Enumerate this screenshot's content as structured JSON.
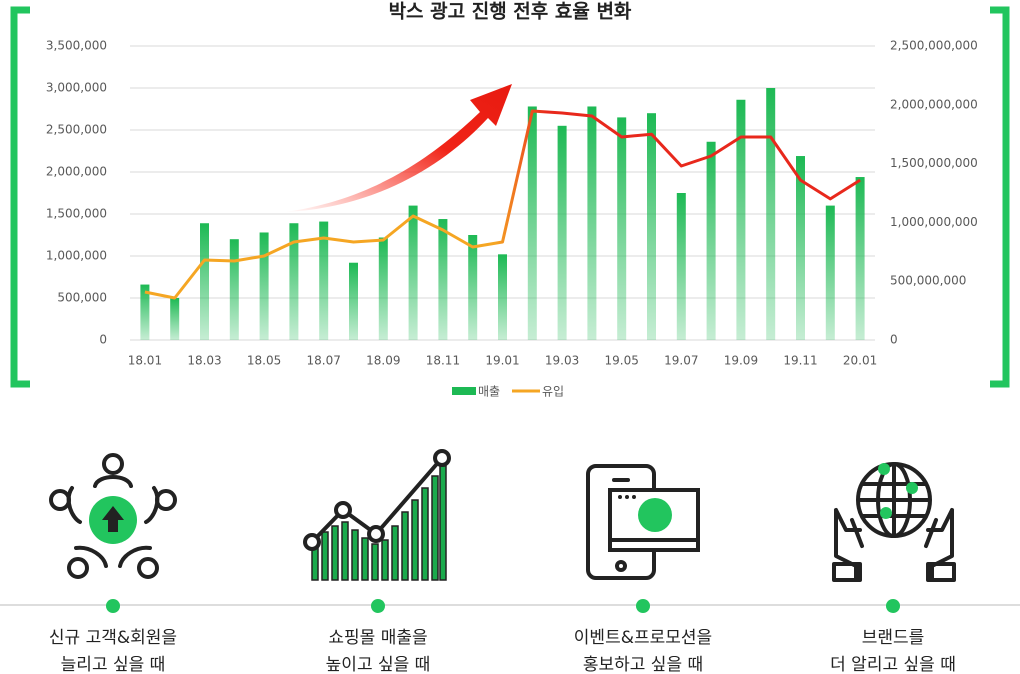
{
  "chart_data": {
    "type": "combo",
    "title": "박스 광고 진행 전후 효율 변화",
    "categories": [
      "18.01",
      null,
      "18.03",
      null,
      "18.05",
      null,
      "18.07",
      null,
      "18.09",
      null,
      "18.11",
      null,
      "19.01",
      null,
      "19.03",
      null,
      "19.05",
      null,
      "19.07",
      null,
      "19.09",
      null,
      "19.11",
      null,
      "20.01"
    ],
    "series": [
      {
        "name": "매출",
        "type": "bar",
        "color": "#1db954",
        "axis": "y",
        "values": [
          660000,
          500000,
          1390000,
          1200000,
          1280000,
          1390000,
          1410000,
          920000,
          1220000,
          1600000,
          1440000,
          1250000,
          1020000,
          2780000,
          2550000,
          2780000,
          2650000,
          2700000,
          1750000,
          2360000,
          2860000,
          3000000,
          2190000,
          1600000,
          1940000
        ]
      },
      {
        "name": "유입",
        "type": "line",
        "color": "#f5a623",
        "highlight_color": "#e8281c",
        "axis": "y2",
        "values": [
          408000000,
          357000000,
          680000000,
          672000000,
          714000000,
          833000000,
          867000000,
          833000000,
          850000000,
          1054000000,
          935000000,
          791000000,
          833000000,
          1947000000,
          1930000000,
          1905000000,
          1726000000,
          1750000000,
          1480000000,
          1565000000,
          1726000000,
          1726000000,
          1360000000,
          1200000000,
          1360000000
        ]
      }
    ],
    "ylim": [
      0,
      3500000
    ],
    "yticks": [
      0,
      {
        "value": 500000,
        "label": "500,000"
      },
      {
        "value": 1000000,
        "label": "1,000,000"
      },
      {
        "value": 1500000,
        "label": "1,500,000"
      },
      {
        "value": 2000000,
        "label": "2,000,000"
      },
      {
        "value": 2500000,
        "label": "2,500,000"
      },
      {
        "value": 3000000,
        "label": "3,000,000"
      },
      {
        "value": 3500000,
        "label": "3,500,000"
      }
    ],
    "y2lim": [
      0,
      2500000000
    ],
    "y2ticks": [
      0,
      {
        "value": 500000000,
        "label": "500,000,000"
      },
      {
        "value": 1000000000,
        "label": "1,000,000,000"
      },
      {
        "value": 1500000000,
        "label": "1,500,000,000"
      },
      {
        "value": 2000000000,
        "label": "2,000,000,000"
      },
      {
        "value": 2500000000,
        "label": "2,500,000,000"
      }
    ],
    "grid": true,
    "legend": "bottom"
  },
  "features": [
    {
      "text": [
        "신규 고객&회원을",
        "늘리고 싶을 때"
      ]
    },
    {
      "text": [
        "쇼핑몰 매출을",
        "높이고 싶을 때"
      ]
    },
    {
      "text": [
        "이벤트&프로모션을",
        "홍보하고 싶을 때"
      ]
    },
    {
      "text": [
        "브랜드를",
        "더 알리고 싶을 때"
      ]
    }
  ]
}
